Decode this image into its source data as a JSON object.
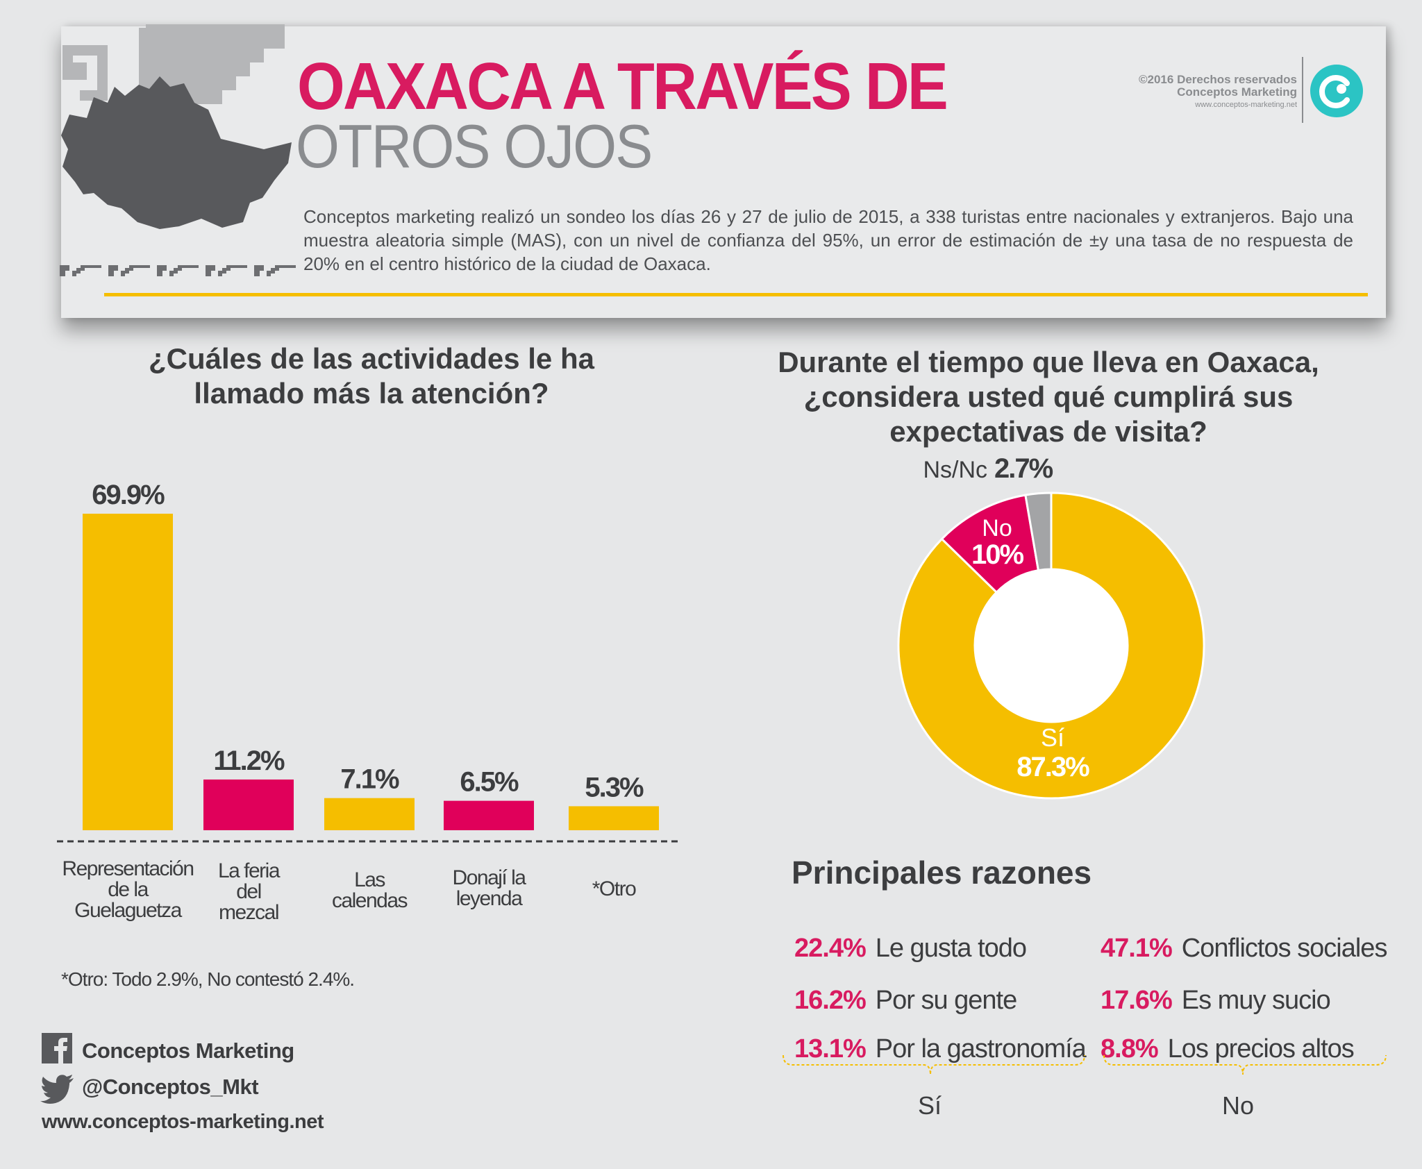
{
  "header": {
    "title_line1": "OAXACA A TRAVÉS DE",
    "title_line2": "OTROS OJOS",
    "intro": "Conceptos marketing realizó un sondeo los días 26 y 27 de julio de 2015, a 338 turistas entre nacionales y extranjeros. Bajo una muestra aleatoria simple (MAS), con un nivel de confianza del 95%, un error de estimación de ±y una tasa de no respuesta de 20% en el centro histórico de la ciudad de Oaxaca.",
    "copyright": "©2016 Derechos reservados",
    "company": "Conceptos Marketing",
    "website_small": "www.conceptos-marketing.net"
  },
  "bar_question": "¿Cuáles de las actividades le ha llamado más la atención?",
  "donut_question": "Durante el tiempo que lleva en Oaxaca, ¿considera usted qué cumplirá sus expectativas de visita?",
  "chart_data": [
    {
      "type": "bar",
      "title": "¿Cuáles de las actividades le ha llamado más la atención?",
      "categories": [
        "Representación de la Guelaguetza",
        "La feria del mezcal",
        "Las calendas",
        "Donají la leyenda",
        "*Otro"
      ],
      "category_lines": [
        [
          "Representación",
          "de la",
          "Guelaguetza"
        ],
        [
          "La feria",
          "del",
          "mezcal"
        ],
        [
          "Las",
          "calendas"
        ],
        [
          "Donají la",
          "leyenda"
        ],
        [
          "*Otro"
        ]
      ],
      "values": [
        69.9,
        11.2,
        7.1,
        6.5,
        5.3
      ],
      "labels": [
        "69.9%",
        "11.2%",
        "7.1%",
        "6.5%",
        "5.3%"
      ],
      "colors": [
        "#f5be00",
        "#e0005a",
        "#f5be00",
        "#e0005a",
        "#f5be00"
      ],
      "ylim": [
        0,
        70
      ],
      "footnote": "*Otro: Todo 2.9%, No contestó 2.4%."
    },
    {
      "type": "pie",
      "title": "Durante el tiempo que lleva en Oaxaca, ¿considera usted qué cumplirá sus expectativas de visita?",
      "slices": [
        {
          "label": "Sí",
          "value": 87.3,
          "value_label": "87.3%",
          "color": "#f5be00"
        },
        {
          "label": "No",
          "value": 10.0,
          "value_label": "10%",
          "color": "#e0005a"
        },
        {
          "label": "Ns/Nc",
          "value": 2.7,
          "value_label": "2.7%",
          "color": "#a3a4a6"
        }
      ]
    }
  ],
  "reasons": {
    "title": "Principales razones",
    "si": {
      "label": "Sí",
      "items": [
        {
          "pct": "22.4%",
          "text": "Le gusta todo"
        },
        {
          "pct": "16.2%",
          "text": "Por su gente"
        },
        {
          "pct": "13.1%",
          "text": "Por la gastronomía"
        }
      ]
    },
    "no": {
      "label": "No",
      "items": [
        {
          "pct": "47.1%",
          "text": "Conflictos sociales"
        },
        {
          "pct": "17.6%",
          "text": "Es muy sucio"
        },
        {
          "pct": "8.8%",
          "text": "Los precios altos"
        }
      ]
    }
  },
  "social": {
    "facebook": "Conceptos Marketing",
    "twitter": "@Conceptos_Mkt",
    "website": "www.conceptos-marketing.net"
  },
  "colors": {
    "gold": "#f5be00",
    "magenta": "#e0005a",
    "title_magenta": "#d81b60",
    "gray": "#a3a4a6",
    "text": "#3c3d3f",
    "teal": "#2bc4c4"
  }
}
